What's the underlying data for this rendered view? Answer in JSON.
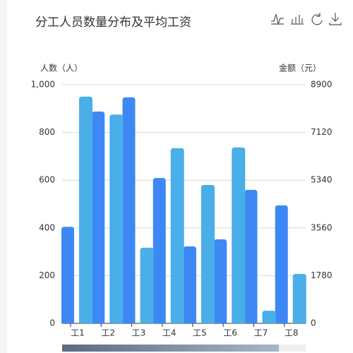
{
  "chart_data": {
    "type": "bar",
    "title": "分工人员数量分布及平均工资",
    "ylabel": "人数（人）",
    "y2label": "金额（元）",
    "categories": [
      "工1",
      "工2",
      "工3",
      "工4",
      "工5",
      "工6",
      "工7",
      "工8"
    ],
    "series": [
      {
        "color": "#3d88f5",
        "axis": "y2",
        "values": [
          3600,
          7900,
          8430,
          5420,
          2870,
          3135,
          4980,
          4400
        ]
      },
      {
        "color": "#4aaee8",
        "values": [
          950,
          875,
          317,
          734,
          580,
          737,
          53,
          207
        ]
      }
    ],
    "ylim": [
      0,
      1000
    ],
    "yticks": [
      0,
      200,
      400,
      600,
      800,
      {
        "value": 1000,
        "label": "1,000"
      }
    ],
    "y2lim": [
      0,
      8900
    ],
    "y2ticks": [
      0,
      1780,
      3560,
      5340,
      7120,
      8900
    ],
    "grid": true
  }
}
